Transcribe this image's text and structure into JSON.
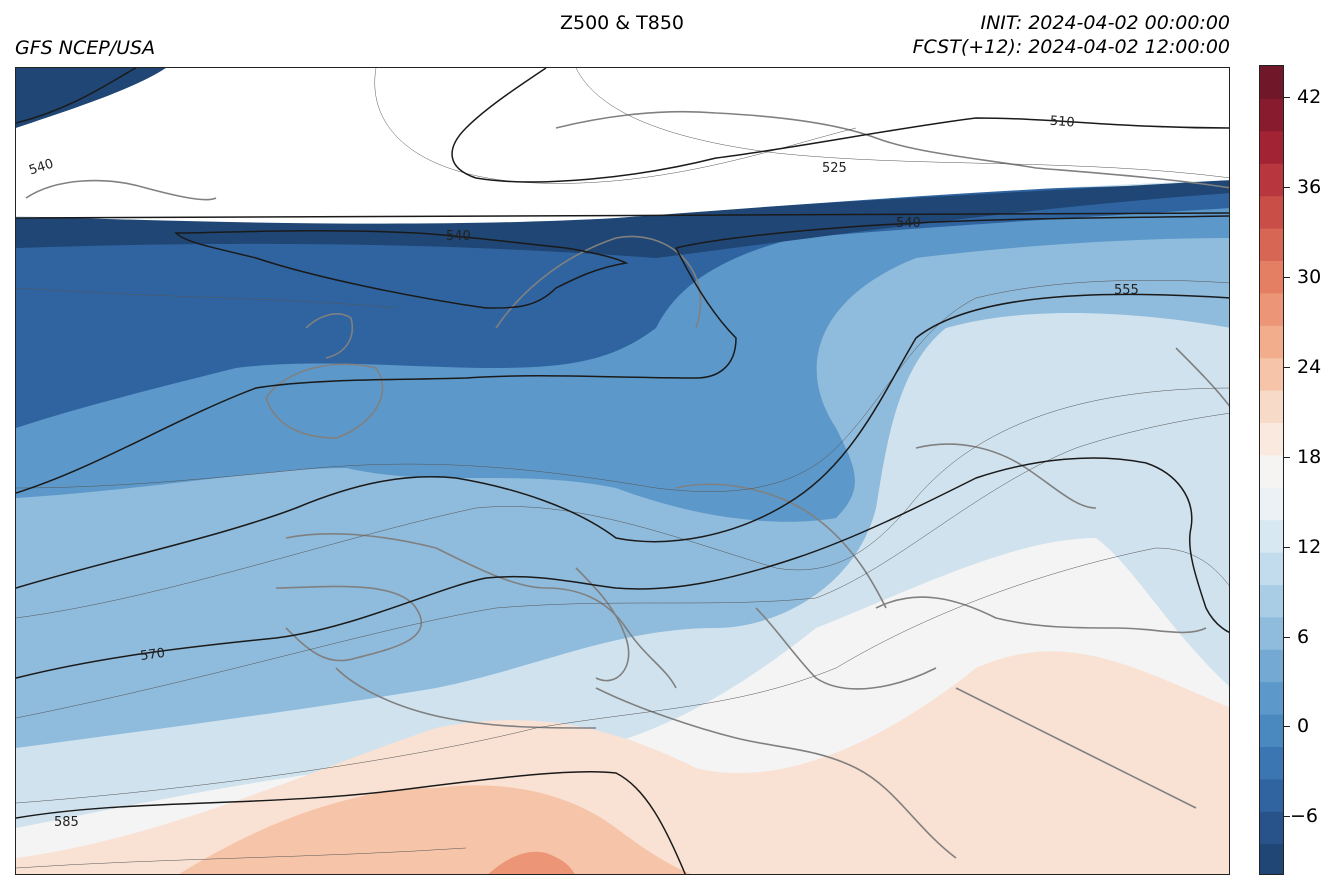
{
  "header": {
    "center_title": "Z500 & T850",
    "left_title": "GFS NCEP/USA",
    "init": "INIT: 2024-04-02 00:00:00",
    "fcst": "FCST(+12): 2024-04-02 12:00:00"
  },
  "map": {
    "field_shaded": "T850",
    "field_contour": "Z500",
    "contour_labels": [
      "510",
      "525",
      "540",
      "540",
      "540",
      "555",
      "570",
      "585"
    ],
    "colors": {
      "coldest": "#1f4d80",
      "cold": "#4a88c0",
      "cool": "#a9cde4",
      "neutral": "#f4f4f4",
      "warm": "#f6c4a8",
      "hot": "#e7856a",
      "coastline": "#808080",
      "contour": "#1a1a1a"
    }
  },
  "colorbar": {
    "ticks": [
      "42",
      "36",
      "30",
      "24",
      "18",
      "12",
      "6",
      "0",
      "−6"
    ],
    "colors": [
      "#1f4674",
      "#28538a",
      "#2f64a0",
      "#3c76b2",
      "#4a88c0",
      "#5c98c9",
      "#73a9d2",
      "#8fbbdc",
      "#a9cde4",
      "#c2dced",
      "#d8e8f2",
      "#ebf1f5",
      "#f6f4f2",
      "#f9e9df",
      "#f8dac8",
      "#f6c4a8",
      "#f2ad8d",
      "#ec9677",
      "#e47f63",
      "#d76654",
      "#c94e48",
      "#b8363e",
      "#a22434",
      "#881b2d",
      "#70172a"
    ]
  }
}
